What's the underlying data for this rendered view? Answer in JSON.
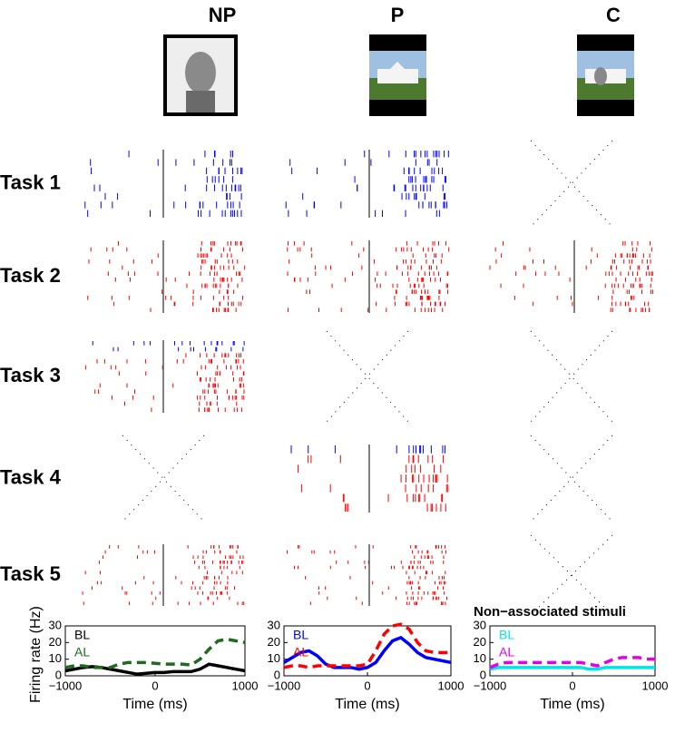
{
  "columns": [
    "NP",
    "P",
    "C"
  ],
  "rows": [
    "Task 1",
    "Task 2",
    "Task 3",
    "Task 4",
    "Task 5"
  ],
  "chart_data": [
    {
      "type": "line",
      "ylabel": "Firing rate (Hz)",
      "xlabel": "Time (ms)",
      "x": [
        -1000,
        -900,
        -800,
        -700,
        -600,
        -500,
        -400,
        -300,
        -200,
        -100,
        0,
        100,
        200,
        300,
        400,
        500,
        600,
        700,
        800,
        900,
        1000
      ],
      "series": [
        {
          "name": "BL",
          "color": "#000000",
          "dash": false,
          "values": [
            3,
            4,
            5,
            5.5,
            5,
            4,
            3,
            2,
            1,
            1.5,
            2,
            2,
            2.5,
            2.5,
            2.5,
            4,
            7,
            6,
            5,
            4,
            3
          ]
        },
        {
          "name": "AL",
          "color": "#1e6b1e",
          "dash": true,
          "values": [
            5,
            6,
            6,
            5,
            5,
            5,
            7,
            8,
            8,
            8,
            7.5,
            7,
            7,
            7,
            6.5,
            10,
            16,
            21,
            22,
            21,
            20
          ]
        }
      ],
      "xlim": [
        -1000,
        1000
      ],
      "ylim": [
        0,
        30
      ],
      "xticks": [
        {
          "value": -1000,
          "label": "−1000"
        },
        0,
        1000
      ],
      "yticks": [
        0,
        10,
        20,
        30
      ]
    },
    {
      "type": "line",
      "xlabel": "Time (ms)",
      "x": [
        -1000,
        -900,
        -800,
        -700,
        -600,
        -500,
        -400,
        -300,
        -200,
        -100,
        0,
        100,
        200,
        300,
        400,
        500,
        600,
        700,
        800,
        900,
        1000
      ],
      "series": [
        {
          "name": "BL",
          "color": "#0000ff",
          "dash": false,
          "values": [
            8,
            11,
            14,
            15,
            12,
            7,
            5,
            5,
            5,
            4,
            5,
            8,
            15,
            21,
            23,
            19,
            14,
            11,
            10,
            9,
            8
          ]
        },
        {
          "name": "AL",
          "color": "#ff0000",
          "dash": true,
          "values": [
            5,
            6,
            6,
            5,
            6,
            6,
            6,
            6,
            6,
            6,
            7,
            15,
            25,
            30,
            31,
            28,
            20,
            15,
            14,
            14,
            14
          ]
        }
      ],
      "xlim": [
        -1000,
        1000
      ],
      "ylim": [
        0,
        30
      ],
      "xticks": [
        {
          "value": -1000,
          "label": "−1000"
        },
        0,
        1000
      ],
      "yticks": [
        0,
        10,
        20,
        30
      ]
    },
    {
      "type": "line",
      "title": "Non−associated stimuli",
      "xlabel": "Time (ms)",
      "x": [
        -1000,
        -900,
        -800,
        -700,
        -600,
        -500,
        -400,
        -300,
        -200,
        -100,
        0,
        100,
        200,
        300,
        400,
        500,
        600,
        700,
        800,
        900,
        1000
      ],
      "series": [
        {
          "name": "BL",
          "color": "#00e5e5",
          "dash": false,
          "values": [
            4,
            5,
            5,
            5,
            5,
            5,
            5,
            5,
            5,
            5,
            5,
            5,
            4,
            4,
            5,
            5,
            5,
            5,
            5,
            5,
            5
          ]
        },
        {
          "name": "AL",
          "color": "#e500e5",
          "dash": true,
          "values": [
            5,
            7,
            8,
            8,
            8,
            8,
            8,
            8,
            8,
            8,
            8,
            8,
            7,
            6,
            8,
            10,
            11,
            11,
            11,
            10,
            10
          ]
        }
      ],
      "xlim": [
        -1000,
        1000
      ],
      "ylim": [
        0,
        30
      ],
      "xticks": [
        {
          "value": -1000,
          "label": "−1000"
        },
        0,
        1000
      ],
      "yticks": [
        0,
        10,
        20,
        30
      ]
    }
  ]
}
